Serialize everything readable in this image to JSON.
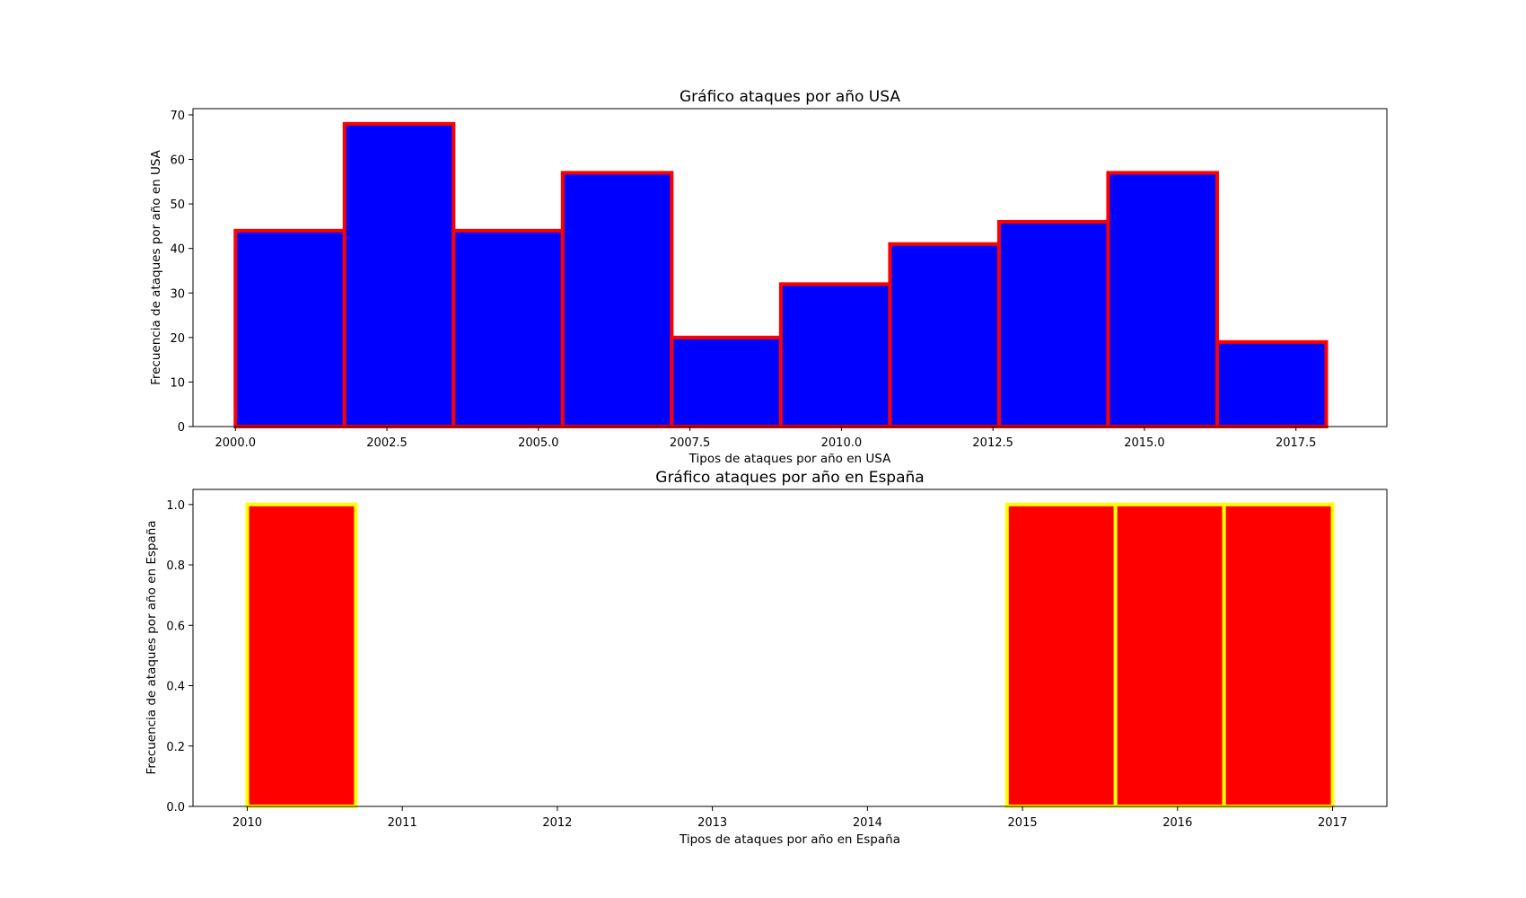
{
  "chart_data": [
    {
      "type": "bar",
      "title": "Gráfico ataques por año USA",
      "xlabel": "Tipos de ataques por año en USA",
      "ylabel": "Frecuencia de ataques por año en USA",
      "bin_edges": [
        2000.0,
        2001.8,
        2003.6,
        2005.4,
        2007.2,
        2009.0,
        2010.8,
        2012.6,
        2014.4,
        2016.2,
        2018.0
      ],
      "values": [
        44,
        68,
        44,
        57,
        20,
        32,
        41,
        46,
        57,
        19
      ],
      "xlim": [
        1999.3,
        2019.0
      ],
      "ylim": [
        0,
        71.4
      ],
      "xticks": [
        2000.0,
        2002.5,
        2005.0,
        2007.5,
        2010.0,
        2012.5,
        2015.0,
        2017.5
      ],
      "xtick_labels": [
        "2000.0",
        "2002.5",
        "2005.0",
        "2007.5",
        "2010.0",
        "2012.5",
        "2015.0",
        "2017.5"
      ],
      "yticks": [
        0,
        10,
        20,
        30,
        40,
        50,
        60,
        70
      ],
      "ytick_labels": [
        "0",
        "10",
        "20",
        "30",
        "40",
        "50",
        "60",
        "70"
      ],
      "bar_color": "#0000ff",
      "edge_color": "#ff0000",
      "grid": false
    },
    {
      "type": "bar",
      "title": "Gráfico ataques por año en España",
      "xlabel": "Tipos de ataques por año en España",
      "ylabel": "Frecuencia de ataques por año en España",
      "bin_edges": [
        2010.0,
        2010.7,
        2011.4,
        2012.1,
        2012.8,
        2013.5,
        2014.2,
        2014.9,
        2015.6,
        2016.3,
        2017.0
      ],
      "values": [
        1,
        0,
        0,
        0,
        0,
        0,
        0,
        1,
        1,
        1
      ],
      "xlim": [
        2009.65,
        2017.35
      ],
      "ylim": [
        0,
        1.05
      ],
      "xticks": [
        2010,
        2011,
        2012,
        2013,
        2014,
        2015,
        2016,
        2017
      ],
      "xtick_labels": [
        "2010",
        "2011",
        "2012",
        "2013",
        "2014",
        "2015",
        "2016",
        "2017"
      ],
      "yticks": [
        0.0,
        0.2,
        0.4,
        0.6,
        0.8,
        1.0
      ],
      "ytick_labels": [
        "0.0",
        "0.2",
        "0.4",
        "0.6",
        "0.8",
        "1.0"
      ],
      "bar_color": "#ff0000",
      "edge_color": "#ffff00",
      "grid": false
    }
  ]
}
